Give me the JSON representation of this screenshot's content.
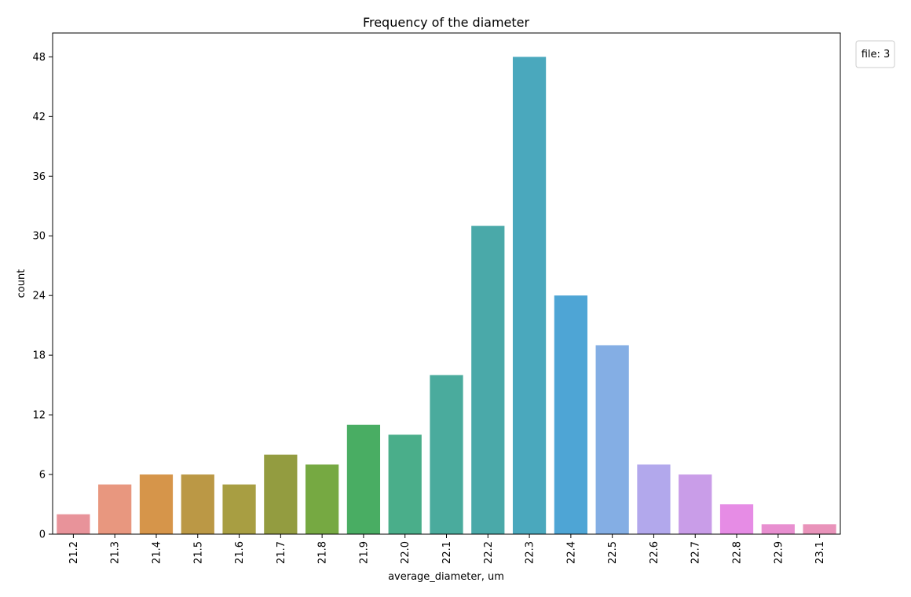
{
  "chart_data": {
    "type": "bar",
    "title": "Frequency of the diameter",
    "xlabel": "average_diameter, um",
    "ylabel": "count",
    "categories": [
      "21.2",
      "21.3",
      "21.4",
      "21.5",
      "21.6",
      "21.7",
      "21.8",
      "21.9",
      "22.0",
      "22.1",
      "22.2",
      "22.3",
      "22.4",
      "22.5",
      "22.6",
      "22.7",
      "22.8",
      "22.9",
      "23.1"
    ],
    "values": [
      2,
      5,
      6,
      6,
      5,
      8,
      7,
      11,
      10,
      16,
      31,
      48,
      24,
      19,
      7,
      6,
      3,
      1,
      1
    ],
    "colors": [
      "#e8939a",
      "#e8977f",
      "#d6954a",
      "#bb9845",
      "#a89e42",
      "#939c40",
      "#76a942",
      "#49ad63",
      "#4aae8a",
      "#4aab9d",
      "#4aa9a9",
      "#4aa8bd",
      "#4ea5d5",
      "#84aee4",
      "#b2a8ec",
      "#c99de8",
      "#e68ce5",
      "#e88fd0",
      "#e993ba"
    ],
    "yticks": [
      0,
      6,
      12,
      18,
      24,
      30,
      36,
      42,
      48
    ],
    "ylim": [
      0,
      50.4
    ],
    "grid": false,
    "legend": {
      "title": "file: 3",
      "placement": "upper-right-outside"
    }
  }
}
